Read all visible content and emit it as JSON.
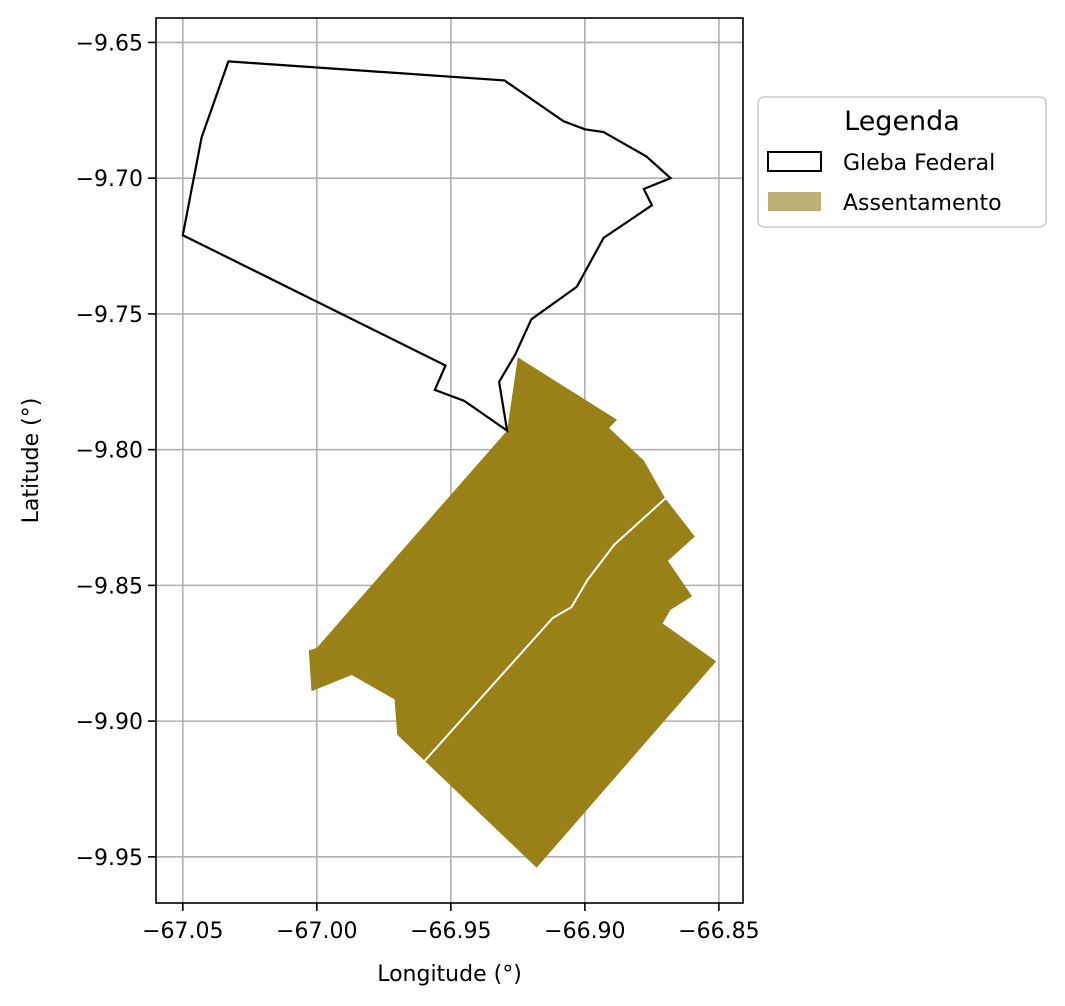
{
  "chart_data": {
    "type": "map",
    "xlabel": "Longitude (°)",
    "ylabel": "Latitude (°)",
    "xlim": [
      -67.06,
      -66.841
    ],
    "ylim": [
      -9.967,
      -9.641
    ],
    "xticks": [
      -67.05,
      -67.0,
      -66.95,
      -66.9,
      -66.85
    ],
    "xtick_labels": [
      "−67.05",
      "−67.00",
      "−66.95",
      "−66.90",
      "−66.85"
    ],
    "yticks": [
      -9.65,
      -9.7,
      -9.75,
      -9.8,
      -9.85,
      -9.9,
      -9.95
    ],
    "ytick_labels": [
      "−9.65",
      "−9.70",
      "−9.75",
      "−9.80",
      "−9.85",
      "−9.90",
      "−9.95"
    ],
    "grid": true,
    "legend": {
      "title": "Legenda",
      "placement": "outside-right-top",
      "entries": [
        {
          "label": "Gleba Federal",
          "style": "outline",
          "edge_color": "#000000",
          "fill_color": "#ffffff"
        },
        {
          "label": "Assentamento",
          "style": "fill",
          "fill_color": "#bdb076"
        }
      ]
    },
    "layers": [
      {
        "name": "Gleba Federal",
        "fill": "none",
        "stroke": "#000000",
        "coordinates": [
          [
            -67.033,
            -9.657
          ],
          [
            -66.93,
            -9.664
          ],
          [
            -66.908,
            -9.679
          ],
          [
            -66.9,
            -9.682
          ],
          [
            -66.893,
            -9.683
          ],
          [
            -66.877,
            -9.692
          ],
          [
            -66.868,
            -9.7
          ],
          [
            -66.878,
            -9.704
          ],
          [
            -66.875,
            -9.71
          ],
          [
            -66.893,
            -9.722
          ],
          [
            -66.903,
            -9.74
          ],
          [
            -66.92,
            -9.752
          ],
          [
            -66.926,
            -9.765
          ],
          [
            -66.932,
            -9.775
          ],
          [
            -66.929,
            -9.793
          ],
          [
            -66.945,
            -9.782
          ],
          [
            -66.956,
            -9.778
          ],
          [
            -66.952,
            -9.769
          ],
          [
            -67.05,
            -9.721
          ],
          [
            -67.043,
            -9.685
          ],
          [
            -67.033,
            -9.657
          ]
        ]
      },
      {
        "name": "Assentamento",
        "fill": "#998118",
        "stroke": "none",
        "coordinates": [
          [
            -66.925,
            -9.766
          ],
          [
            -66.888,
            -9.789
          ],
          [
            -66.891,
            -9.792
          ],
          [
            -66.878,
            -9.804
          ],
          [
            -66.87,
            -9.818
          ],
          [
            -66.859,
            -9.832
          ],
          [
            -66.869,
            -9.841
          ],
          [
            -66.86,
            -9.854
          ],
          [
            -66.868,
            -9.859
          ],
          [
            -66.871,
            -9.864
          ],
          [
            -66.851,
            -9.878
          ],
          [
            -66.918,
            -9.954
          ],
          [
            -66.97,
            -9.905
          ],
          [
            -66.971,
            -9.892
          ],
          [
            -66.987,
            -9.883
          ],
          [
            -67.002,
            -9.889
          ],
          [
            -67.003,
            -9.874
          ],
          [
            -67.0,
            -9.873
          ],
          [
            -66.929,
            -9.793
          ],
          [
            -66.925,
            -9.766
          ]
        ]
      },
      {
        "name": "boundary-line",
        "fill": "none",
        "stroke": "#ffffff",
        "coordinates": [
          [
            -66.87,
            -9.818
          ],
          [
            -66.889,
            -9.835
          ],
          [
            -66.899,
            -9.848
          ],
          [
            -66.905,
            -9.858
          ],
          [
            -66.912,
            -9.862
          ],
          [
            -66.961,
            -9.916
          ]
        ]
      }
    ]
  }
}
